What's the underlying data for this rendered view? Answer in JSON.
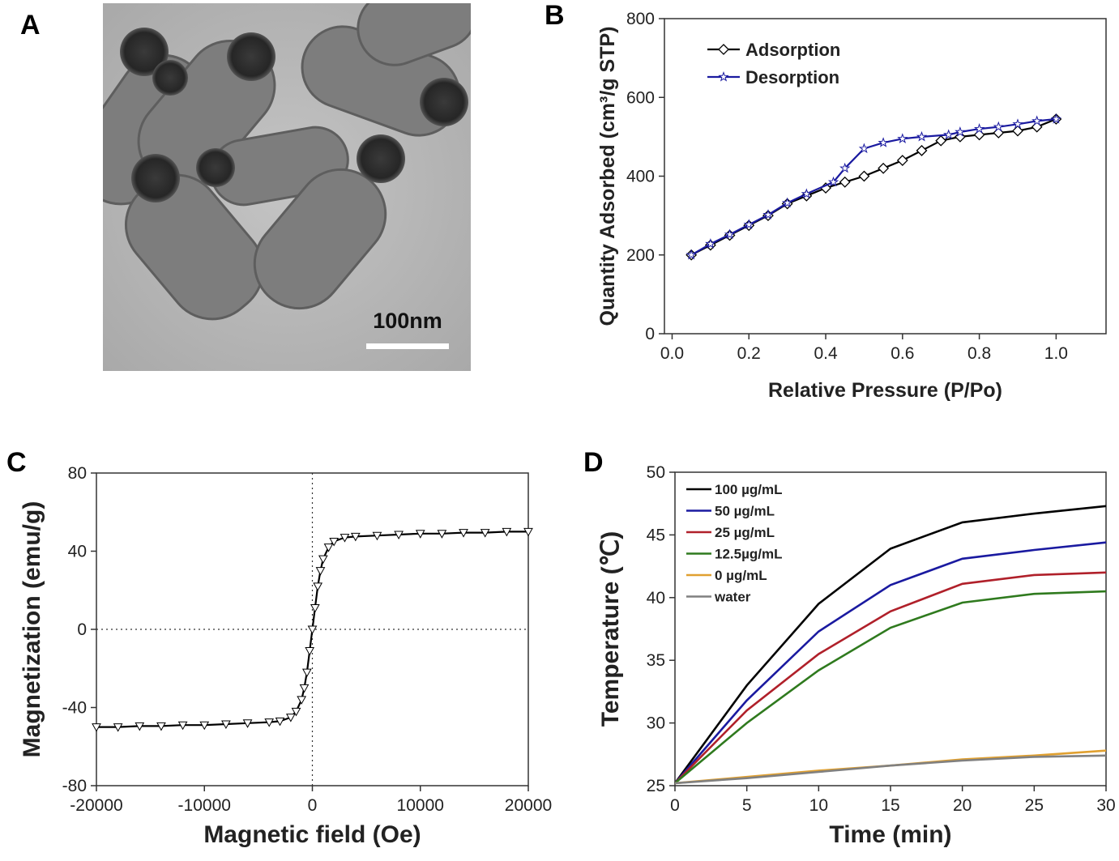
{
  "panel_a": {
    "label": "A",
    "scale_bar": "100nm"
  },
  "chart_data": [
    {
      "panel": "B",
      "type": "line",
      "xlabel": "Relative Pressure (P/Po)",
      "ylabel": "Quantity Adsorbed (cm³/g STP)",
      "xlim": [
        -0.02,
        1.13
      ],
      "ylim": [
        0,
        800
      ],
      "xticks": [
        "0.0",
        "0.2",
        "0.4",
        "0.6",
        "0.8",
        "1.0"
      ],
      "yticks": [
        "0",
        "200",
        "400",
        "600",
        "800"
      ],
      "legend_position": "top-left",
      "series": [
        {
          "name": "Adsorption",
          "color": "#000000",
          "marker": "diamond",
          "x": [
            0.05,
            0.1,
            0.15,
            0.2,
            0.25,
            0.3,
            0.35,
            0.4,
            0.45,
            0.5,
            0.55,
            0.6,
            0.65,
            0.7,
            0.75,
            0.8,
            0.85,
            0.9,
            0.95,
            1.0
          ],
          "y": [
            200,
            225,
            250,
            275,
            300,
            330,
            350,
            370,
            385,
            400,
            420,
            440,
            465,
            490,
            500,
            505,
            510,
            515,
            525,
            545
          ]
        },
        {
          "name": "Desorption",
          "color": "#1a1aa0",
          "marker": "star",
          "x": [
            1.0,
            0.95,
            0.9,
            0.85,
            0.8,
            0.75,
            0.72,
            0.65,
            0.6,
            0.55,
            0.5,
            0.45,
            0.42,
            0.35,
            0.3,
            0.25,
            0.2,
            0.15,
            0.1,
            0.05
          ],
          "y": [
            545,
            540,
            532,
            525,
            520,
            512,
            505,
            500,
            495,
            485,
            470,
            420,
            385,
            355,
            332,
            302,
            277,
            252,
            228,
            200
          ]
        }
      ]
    },
    {
      "panel": "C",
      "type": "scatter",
      "xlabel": "Magnetic field (Oe)",
      "ylabel": "Magnetization (emu/g)",
      "xlim": [
        -20000,
        20000
      ],
      "ylim": [
        -80,
        80
      ],
      "xticks": [
        "-20000",
        "-10000",
        "0",
        "10000",
        "20000"
      ],
      "yticks": [
        "-80",
        "-40",
        "0",
        "40",
        "80"
      ],
      "zero_lines": true,
      "series": [
        {
          "name": "Magnetization",
          "color": "#000000",
          "marker": "triangle-down",
          "x": [
            -20000,
            -18000,
            -16000,
            -14000,
            -12000,
            -10000,
            -8000,
            -6000,
            -4000,
            -3000,
            -2000,
            -1500,
            -1000,
            -750,
            -500,
            -250,
            0,
            250,
            500,
            750,
            1000,
            1500,
            2000,
            3000,
            4000,
            6000,
            8000,
            10000,
            12000,
            14000,
            16000,
            18000,
            20000
          ],
          "y": [
            -50,
            -50,
            -49.5,
            -49.5,
            -49,
            -49,
            -48.5,
            -48,
            -47.5,
            -47,
            -45,
            -42,
            -36,
            -30,
            -22,
            -11,
            0,
            11,
            22,
            30,
            36,
            42,
            45,
            47,
            47.5,
            48,
            48.5,
            49,
            49,
            49.5,
            49.5,
            50,
            50
          ]
        }
      ]
    },
    {
      "panel": "D",
      "type": "line",
      "xlabel": "Time (min)",
      "ylabel": "Temperature (℃)",
      "xlim": [
        0,
        30
      ],
      "ylim": [
        25,
        50
      ],
      "xticks": [
        "0",
        "5",
        "10",
        "15",
        "20",
        "25",
        "30"
      ],
      "yticks": [
        "25",
        "30",
        "35",
        "40",
        "45",
        "50"
      ],
      "legend_position": "top-left",
      "x": [
        0,
        5,
        10,
        15,
        20,
        25,
        30
      ],
      "series": [
        {
          "name": "100 µg/mL",
          "color": "#000000",
          "values": [
            25.2,
            33,
            39.5,
            43.9,
            46,
            46.7,
            47.3
          ]
        },
        {
          "name": "50 µg/mL",
          "color": "#1a1aa0",
          "values": [
            25.2,
            31.8,
            37.3,
            41,
            43.1,
            43.8,
            44.4
          ]
        },
        {
          "name": "25 µg/mL",
          "color": "#b0202a",
          "values": [
            25.2,
            31,
            35.5,
            38.9,
            41.1,
            41.8,
            42
          ]
        },
        {
          "name": "12.5µg/mL",
          "color": "#2f7a1e",
          "values": [
            25.2,
            30,
            34.2,
            37.6,
            39.6,
            40.3,
            40.5
          ]
        },
        {
          "name": " 0 µg/mL",
          "color": "#e0a030",
          "values": [
            25.2,
            25.7,
            26.2,
            26.6,
            27.1,
            27.4,
            27.8
          ]
        },
        {
          "name": "water",
          "color": "#808080",
          "values": [
            25.2,
            25.6,
            26.1,
            26.6,
            27,
            27.3,
            27.4
          ]
        }
      ]
    }
  ]
}
